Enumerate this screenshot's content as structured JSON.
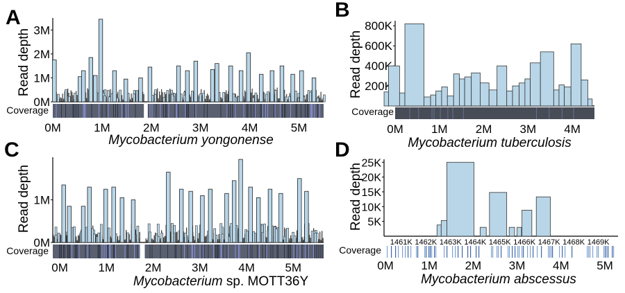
{
  "panels": [
    {
      "letter": "A",
      "ylabel": "Read depth",
      "coverage_label": "Coverage",
      "species": "Mycobacterium yongonense",
      "species_suffix": "",
      "chart_data": {
        "type": "bar",
        "x_unit": "genome position (M)",
        "xlim": [
          0,
          5.5
        ],
        "ylim": [
          0,
          3500000
        ],
        "yticks": [
          0,
          1000000,
          2000000,
          3000000
        ],
        "ytick_labels": [
          "0M",
          "1M",
          "2M",
          "3M"
        ],
        "xticks": [
          0,
          1,
          2,
          3,
          4,
          5
        ],
        "xtick_labels": [
          "0M",
          "1M",
          "2M",
          "3M",
          "4M",
          "5M"
        ],
        "highlighted_bars": [
          {
            "x": 0.03,
            "y": 1750000
          },
          {
            "x": 0.55,
            "y": 1050000
          },
          {
            "x": 0.62,
            "y": 1300000
          },
          {
            "x": 0.77,
            "y": 1850000
          },
          {
            "x": 0.86,
            "y": 1100000
          },
          {
            "x": 0.97,
            "y": 3450000
          },
          {
            "x": 1.25,
            "y": 1300000
          },
          {
            "x": 1.48,
            "y": 950000
          },
          {
            "x": 1.78,
            "y": 1000000
          },
          {
            "x": 1.97,
            "y": 1450000
          },
          {
            "x": 2.55,
            "y": 1500000
          },
          {
            "x": 2.73,
            "y": 1300000
          },
          {
            "x": 2.9,
            "y": 1700000
          },
          {
            "x": 3.24,
            "y": 1350000
          },
          {
            "x": 3.33,
            "y": 1600000
          },
          {
            "x": 3.61,
            "y": 1500000
          },
          {
            "x": 3.82,
            "y": 1300000
          },
          {
            "x": 3.97,
            "y": 2050000
          },
          {
            "x": 4.23,
            "y": 1150000
          },
          {
            "x": 4.45,
            "y": 1300000
          },
          {
            "x": 4.65,
            "y": 1500000
          },
          {
            "x": 4.87,
            "y": 1150000
          },
          {
            "x": 5.05,
            "y": 1300000
          },
          {
            "x": 5.3,
            "y": 1000000
          }
        ],
        "gaps": [
          [
            1.85,
            1.93
          ]
        ],
        "bar_color": "#b8d6e8",
        "coverage_color": "#5a6070"
      }
    },
    {
      "letter": "B",
      "ylabel": "Read depth",
      "coverage_label": "Coverage",
      "species": "Mycobacterium tuberculosis",
      "species_suffix": "",
      "chart_data": {
        "type": "bar",
        "x_unit": "genome position (M)",
        "xlim": [
          0,
          4.5
        ],
        "ylim": [
          0,
          850000
        ],
        "yticks": [
          200000,
          400000,
          600000,
          800000
        ],
        "ytick_labels": [
          "200K",
          "400K",
          "600K",
          "800K"
        ],
        "xticks": [
          0,
          1,
          2,
          3,
          4
        ],
        "xtick_labels": [
          "0M",
          "1M",
          "2M",
          "3M",
          "4M"
        ],
        "bars": [
          {
            "x0": -0.25,
            "x1": -0.15,
            "y": 140000
          },
          {
            "x0": -0.15,
            "x1": 0.1,
            "y": 400000
          },
          {
            "x0": 0.1,
            "x1": 0.22,
            "y": 130000
          },
          {
            "x0": 0.22,
            "x1": 0.65,
            "y": 820000
          },
          {
            "x0": 0.65,
            "x1": 0.8,
            "y": 90000
          },
          {
            "x0": 0.8,
            "x1": 0.92,
            "y": 110000
          },
          {
            "x0": 0.92,
            "x1": 1.05,
            "y": 150000
          },
          {
            "x0": 1.05,
            "x1": 1.18,
            "y": 190000
          },
          {
            "x0": 1.18,
            "x1": 1.32,
            "y": 100000
          },
          {
            "x0": 1.32,
            "x1": 1.45,
            "y": 320000
          },
          {
            "x0": 1.45,
            "x1": 1.57,
            "y": 270000
          },
          {
            "x0": 1.57,
            "x1": 1.72,
            "y": 290000
          },
          {
            "x0": 1.72,
            "x1": 1.92,
            "y": 330000
          },
          {
            "x0": 1.92,
            "x1": 2.12,
            "y": 230000
          },
          {
            "x0": 2.12,
            "x1": 2.3,
            "y": 160000
          },
          {
            "x0": 2.3,
            "x1": 2.52,
            "y": 400000
          },
          {
            "x0": 2.52,
            "x1": 2.65,
            "y": 150000
          },
          {
            "x0": 2.65,
            "x1": 2.8,
            "y": 200000
          },
          {
            "x0": 2.8,
            "x1": 2.93,
            "y": 230000
          },
          {
            "x0": 2.93,
            "x1": 3.05,
            "y": 270000
          },
          {
            "x0": 3.05,
            "x1": 3.28,
            "y": 430000
          },
          {
            "x0": 3.28,
            "x1": 3.58,
            "y": 540000
          },
          {
            "x0": 3.58,
            "x1": 3.7,
            "y": 160000
          },
          {
            "x0": 3.7,
            "x1": 3.82,
            "y": 210000
          },
          {
            "x0": 3.82,
            "x1": 3.97,
            "y": 190000
          },
          {
            "x0": 3.97,
            "x1": 4.2,
            "y": 620000
          },
          {
            "x0": 4.2,
            "x1": 4.35,
            "y": 260000
          },
          {
            "x0": 4.35,
            "x1": 4.45,
            "y": 70000
          }
        ],
        "bar_color": "#b8d6e8",
        "coverage_color": "#474c56"
      }
    },
    {
      "letter": "C",
      "ylabel": "Read depth",
      "coverage_label": "Coverage",
      "species": "Mycobacterium",
      "species_suffix": " sp. MOTT36Y",
      "chart_data": {
        "type": "bar",
        "x_unit": "genome position (M)",
        "xlim": [
          -0.15,
          5.65
        ],
        "ylim": [
          0,
          2000000
        ],
        "yticks": [
          0,
          1000000
        ],
        "ytick_labels": [
          "0M",
          "1M"
        ],
        "xticks": [
          0,
          1,
          2,
          3,
          4,
          5
        ],
        "xtick_labels": [
          "0M",
          "1M",
          "2M",
          "3M",
          "4M",
          "5M"
        ],
        "highlighted_bars": [
          {
            "x": 0.08,
            "y": 1350000
          },
          {
            "x": 0.2,
            "y": 850000
          },
          {
            "x": 0.5,
            "y": 850000
          },
          {
            "x": 0.63,
            "y": 1300000
          },
          {
            "x": 0.98,
            "y": 1250000
          },
          {
            "x": 1.15,
            "y": 1300000
          },
          {
            "x": 1.33,
            "y": 1050000
          },
          {
            "x": 1.57,
            "y": 1000000
          },
          {
            "x": 2.32,
            "y": 1650000
          },
          {
            "x": 2.6,
            "y": 1250000
          },
          {
            "x": 2.8,
            "y": 1200000
          },
          {
            "x": 3.05,
            "y": 1100000
          },
          {
            "x": 3.22,
            "y": 1250000
          },
          {
            "x": 3.57,
            "y": 1150000
          },
          {
            "x": 3.73,
            "y": 1450000
          },
          {
            "x": 3.87,
            "y": 1950000
          },
          {
            "x": 4.08,
            "y": 1300000
          },
          {
            "x": 4.25,
            "y": 1050000
          },
          {
            "x": 4.5,
            "y": 1250000
          },
          {
            "x": 4.73,
            "y": 1150000
          },
          {
            "x": 5.13,
            "y": 1500000
          },
          {
            "x": 5.28,
            "y": 1200000
          }
        ],
        "gaps": [
          [
            1.72,
            1.82
          ]
        ],
        "bar_color": "#b8d6e8",
        "coverage_color": "#5a6070"
      }
    },
    {
      "letter": "D",
      "ylabel": "Read depth",
      "coverage_label": "Coverage",
      "species": "Mycobacterium abscessus",
      "species_suffix": "",
      "chart_data": {
        "type": "bar",
        "x_unit": "genome position (K)",
        "xlim": [
          1460.3,
          1469.8
        ],
        "ylim": [
          0,
          26000
        ],
        "yticks": [
          5000,
          10000,
          15000,
          20000,
          25000
        ],
        "ytick_labels": [
          "5K",
          "10K",
          "15K",
          "20K",
          "25K"
        ],
        "xticks": [
          1461,
          1462,
          1463,
          1464,
          1465,
          1466,
          1467,
          1468,
          1469
        ],
        "xtick_labels": [
          "1461K",
          "1462K",
          "1463K",
          "1464K",
          "1465K",
          "1466K",
          "1467K",
          "1468K",
          "1469K"
        ],
        "bars": [
          {
            "x0": 1462.45,
            "x1": 1462.62,
            "y": 3800
          },
          {
            "x0": 1462.62,
            "x1": 1462.85,
            "y": 5300
          },
          {
            "x0": 1462.85,
            "x1": 1463.95,
            "y": 25000
          },
          {
            "x0": 1464.2,
            "x1": 1464.45,
            "y": 3000
          },
          {
            "x0": 1464.58,
            "x1": 1465.28,
            "y": 14800
          },
          {
            "x0": 1465.38,
            "x1": 1465.6,
            "y": 3000
          },
          {
            "x0": 1465.7,
            "x1": 1465.88,
            "y": 3000
          },
          {
            "x0": 1465.9,
            "x1": 1466.3,
            "y": 8800
          },
          {
            "x0": 1466.48,
            "x1": 1467.05,
            "y": 13300
          }
        ],
        "coverage_xlim": [
          0,
          5.3
        ],
        "coverage_xticks": [
          0,
          1,
          2,
          3,
          4,
          5
        ],
        "coverage_xtick_labels": [
          "0M",
          "1M",
          "2M",
          "3M",
          "4M",
          "5M"
        ],
        "bar_color": "#b8d6e8",
        "coverage_color": "#4a6ea0"
      }
    }
  ]
}
